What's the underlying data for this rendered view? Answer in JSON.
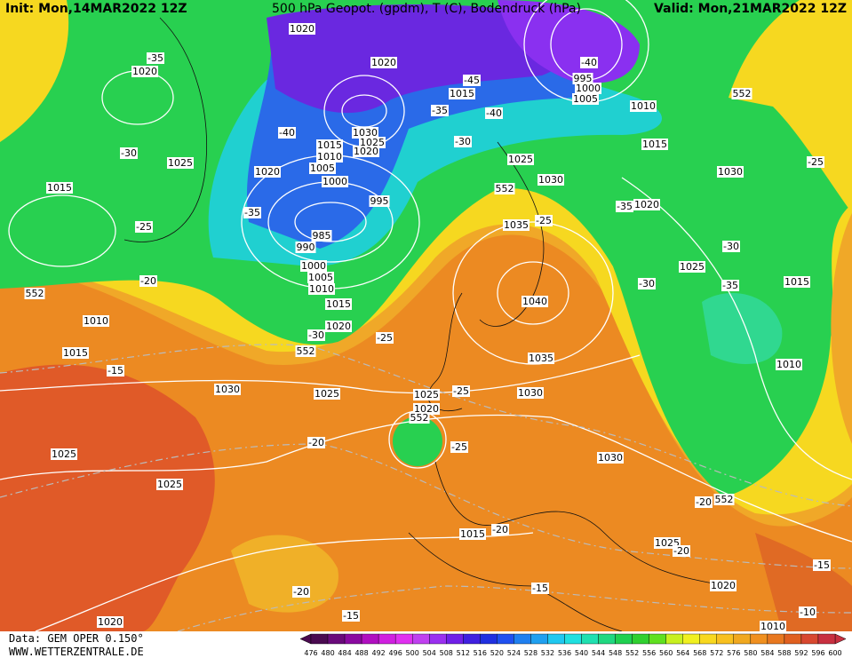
{
  "header": {
    "init": "Init: Mon,14MAR2022 12Z",
    "title": "500 hPa Geopot. (gpdm), T (C), Bodendruck (hPa)",
    "valid": "Valid: Mon,21MAR2022 12Z"
  },
  "footer": {
    "source": "Data: GEM OPER 0.150°",
    "url": "WWW.WETTERZENTRALE.DE"
  },
  "colorbar": {
    "labels": [
      476,
      480,
      484,
      488,
      492,
      496,
      500,
      504,
      508,
      512,
      516,
      520,
      524,
      528,
      532,
      536,
      540,
      544,
      548,
      552,
      556,
      560,
      564,
      568,
      572,
      576,
      580,
      584,
      588,
      592,
      596,
      600
    ],
    "colors": [
      "#4a0a50",
      "#6a0a7a",
      "#8a0aa0",
      "#b010c0",
      "#d020e0",
      "#e030f0",
      "#c040f0",
      "#9a30f0",
      "#7020e8",
      "#4020e0",
      "#2030e0",
      "#2050f0",
      "#2080f0",
      "#20a0f0",
      "#20c8f0",
      "#20e0e0",
      "#20e0b0",
      "#20d880",
      "#20d050",
      "#30d030",
      "#60e020",
      "#c8f020",
      "#f0f020",
      "#f8d820",
      "#f8c020",
      "#f0a820",
      "#f09020",
      "#e87820",
      "#e06020",
      "#d84830",
      "#c83040"
    ]
  },
  "isobar_labels": [
    1020,
    1020,
    1020,
    1025,
    1015,
    1015,
    995,
    1000,
    1005,
    1010,
    1030,
    1025,
    1020,
    1015,
    1010,
    1005,
    1000,
    1020,
    995,
    985,
    990,
    1000,
    1005,
    1010,
    1015,
    1020,
    1025,
    1030,
    1015,
    1030,
    1020,
    1035,
    1025,
    1015,
    1040,
    1035,
    1010,
    1010,
    1015,
    1030,
    1025,
    1025,
    1020,
    1030,
    1030,
    1025,
    1025,
    1015,
    1025,
    1020,
    1020,
    1010
  ],
  "temperature_labels": [
    -35,
    -30,
    -25,
    -20,
    -15,
    -40,
    -45,
    -40,
    -35,
    -30,
    -40,
    -35,
    -25,
    -35,
    -30,
    -35,
    -30,
    -25,
    -30,
    -25,
    -25,
    -25,
    -20,
    -20,
    -20,
    -15,
    -15,
    -20,
    -15,
    -10,
    -20
  ],
  "geopotential_labels": [
    552,
    552,
    552,
    552,
    552,
    552
  ]
}
